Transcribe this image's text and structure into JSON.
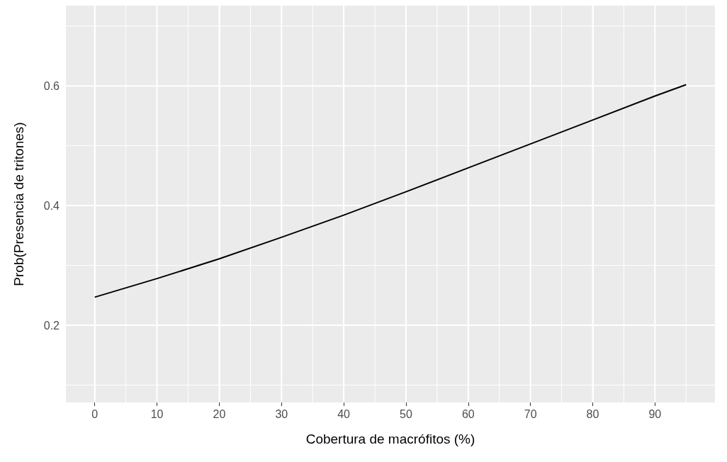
{
  "chart_data": {
    "type": "line",
    "xlabel": "Cobertura de macrófitos (%)",
    "ylabel": "Prob(Presencia de tritones)",
    "x": [
      0,
      10,
      20,
      30,
      40,
      50,
      60,
      70,
      80,
      90,
      95
    ],
    "series": [
      {
        "color": "#000000",
        "values": [
          0.247,
          0.278,
          0.311,
          0.347,
          0.384,
          0.423,
          0.463,
          0.503,
          0.543,
          0.583,
          0.602
        ]
      }
    ],
    "xlim": [
      -4.75,
      99.75
    ],
    "xticks": [
      0,
      10,
      20,
      30,
      40,
      50,
      60,
      70,
      80,
      90
    ],
    "ylim": [
      0.071,
      0.734
    ],
    "yticks": [
      0.2,
      0.4,
      0.6
    ],
    "grid": true,
    "marker": "none",
    "line_style": "solid"
  }
}
